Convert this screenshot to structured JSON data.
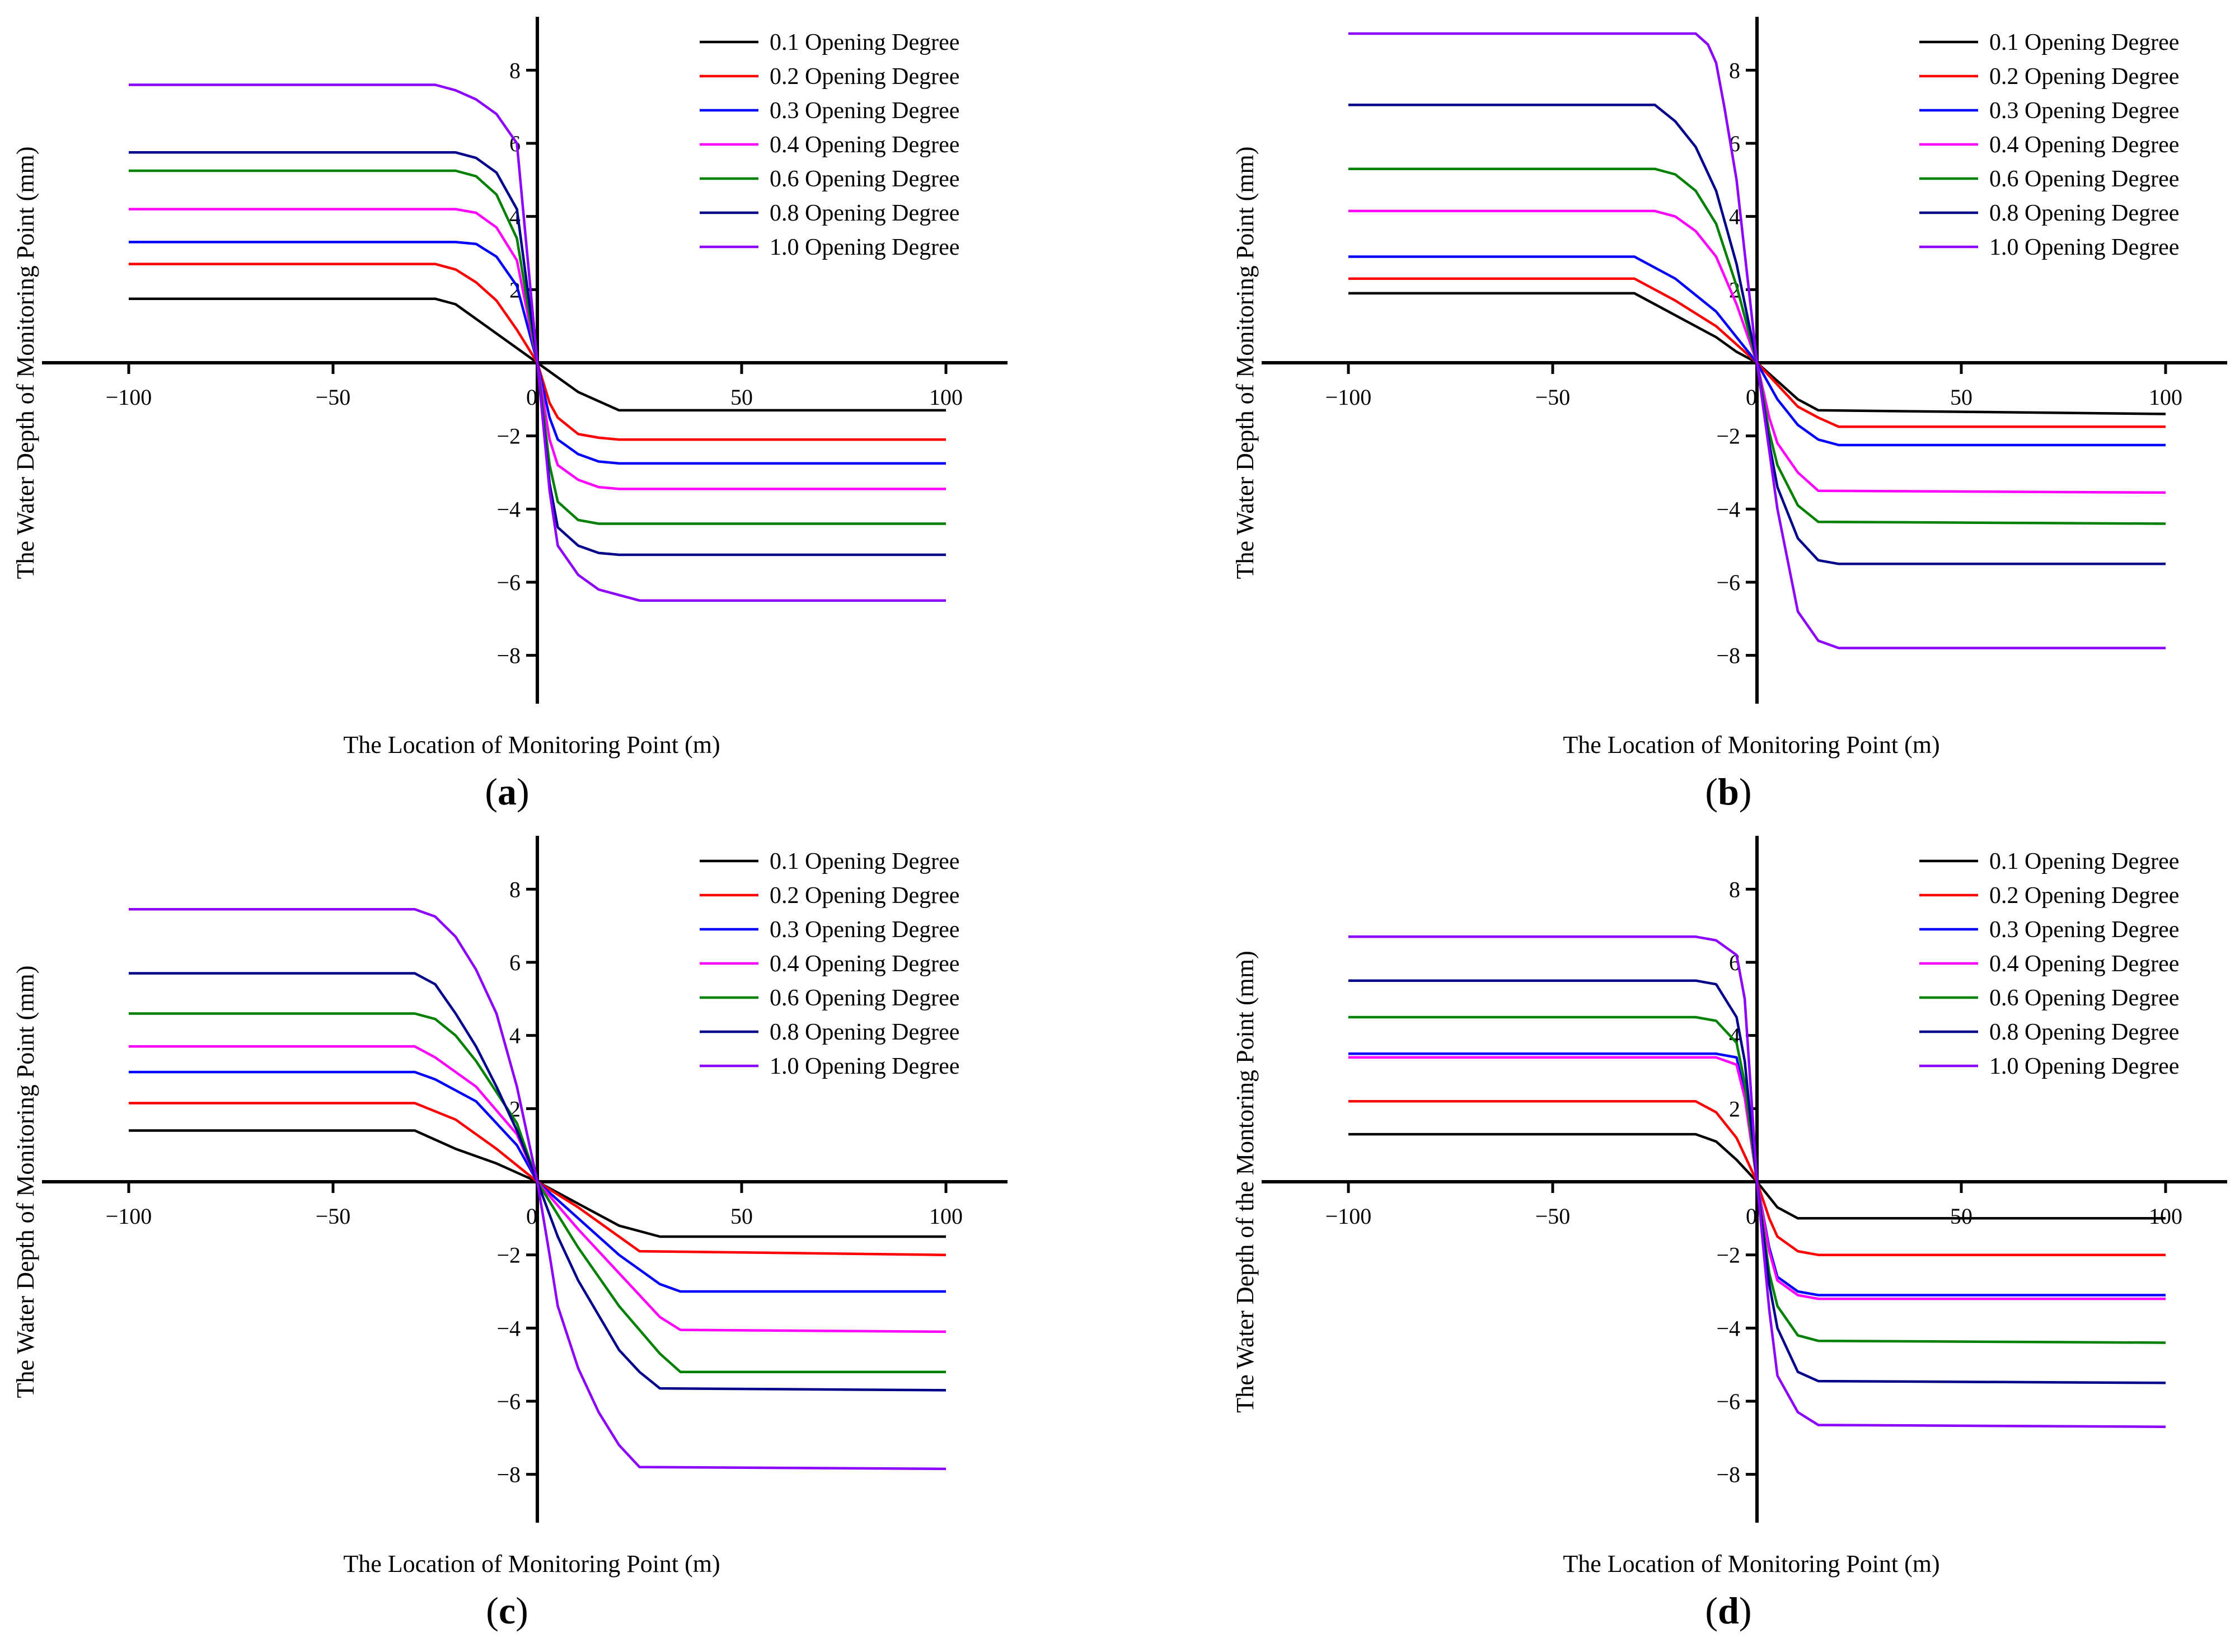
{
  "figure": {
    "colors": [
      "#000000",
      "#ff0000",
      "#0000ff",
      "#ff00ff",
      "#008000",
      "#00008b",
      "#8b00ff"
    ]
  },
  "chart_data": [
    {
      "panel": "a",
      "caption_letter": "a",
      "type": "line",
      "xlabel": "The Location of Monitoring Point (m)",
      "ylabel": "The Water Depth of Monitoring Point (mm)",
      "xlim": [
        -100,
        100
      ],
      "ylim": [
        -9,
        9
      ],
      "xticks": [
        -100,
        -50,
        50,
        100
      ],
      "xtick_labels": [
        "−100",
        "−50",
        "50",
        "100"
      ],
      "yticks": [
        -8,
        -6,
        -4,
        -2,
        2,
        4,
        6,
        8
      ],
      "ytick_labels": [
        "−8",
        "−6",
        "−4",
        "−2",
        "2",
        "4",
        "6",
        "8"
      ],
      "origin_label": "0",
      "legend_position": "top-right",
      "series": [
        {
          "name": "0.1 Opening Degree",
          "x": [
            -100,
            -25,
            -20,
            0,
            10,
            20,
            100
          ],
          "y": [
            1.75,
            1.75,
            1.6,
            0,
            -0.8,
            -1.3,
            -1.3
          ]
        },
        {
          "name": "0.2 Opening Degree",
          "x": [
            -100,
            -25,
            -20,
            -15,
            -10,
            -5,
            0,
            3,
            5,
            10,
            15,
            20,
            100
          ],
          "y": [
            2.7,
            2.7,
            2.55,
            2.2,
            1.7,
            0.9,
            0,
            -1.1,
            -1.5,
            -1.95,
            -2.05,
            -2.1,
            -2.1
          ]
        },
        {
          "name": "0.3 Opening Degree",
          "x": [
            -100,
            -20,
            -15,
            -10,
            -5,
            0,
            3,
            5,
            10,
            15,
            20,
            100
          ],
          "y": [
            3.3,
            3.3,
            3.25,
            2.9,
            2.1,
            0,
            -1.5,
            -2.1,
            -2.5,
            -2.7,
            -2.75,
            -2.75
          ]
        },
        {
          "name": "0.4 Opening Degree",
          "x": [
            -100,
            -20,
            -15,
            -10,
            -5,
            0,
            3,
            5,
            10,
            15,
            20,
            100
          ],
          "y": [
            4.2,
            4.2,
            4.1,
            3.7,
            2.8,
            0,
            -2.1,
            -2.8,
            -3.2,
            -3.4,
            -3.45,
            -3.45
          ]
        },
        {
          "name": "0.6 Opening Degree",
          "x": [
            -100,
            -20,
            -15,
            -10,
            -5,
            0,
            3,
            5,
            10,
            15,
            20,
            100
          ],
          "y": [
            5.25,
            5.25,
            5.1,
            4.6,
            3.4,
            0,
            -2.8,
            -3.8,
            -4.3,
            -4.4,
            -4.4,
            -4.4
          ]
        },
        {
          "name": "0.8 Opening Degree",
          "x": [
            -100,
            -20,
            -15,
            -10,
            -5,
            0,
            3,
            5,
            10,
            15,
            20,
            100
          ],
          "y": [
            5.75,
            5.75,
            5.6,
            5.2,
            4.2,
            0,
            -3.3,
            -4.5,
            -5.0,
            -5.2,
            -5.25,
            -5.25
          ]
        },
        {
          "name": "1.0 Opening Degree",
          "x": [
            -100,
            -25,
            -20,
            -15,
            -10,
            -5,
            0,
            3,
            5,
            10,
            15,
            20,
            25,
            100
          ],
          "y": [
            7.6,
            7.6,
            7.45,
            7.2,
            6.8,
            6.0,
            0,
            -3.5,
            -5.0,
            -5.8,
            -6.2,
            -6.35,
            -6.5,
            -6.5
          ]
        }
      ]
    },
    {
      "panel": "b",
      "caption_letter": "b",
      "type": "line",
      "xlabel": "The Location of Monitoring Point (m)",
      "ylabel": "The Water Depth of Monitoring Point (mm)",
      "xlim": [
        -100,
        100
      ],
      "ylim": [
        -9,
        9
      ],
      "xticks": [
        -100,
        -50,
        50,
        100
      ],
      "xtick_labels": [
        "−100",
        "−50",
        "50",
        "100"
      ],
      "yticks": [
        -8,
        -6,
        -4,
        -2,
        2,
        4,
        6,
        8
      ],
      "ytick_labels": [
        "−8",
        "−6",
        "−4",
        "−2",
        "2",
        "4",
        "6",
        "8"
      ],
      "origin_label": "0",
      "legend_position": "top-right",
      "series": [
        {
          "name": "0.1 Opening Degree",
          "x": [
            -100,
            -30,
            -20,
            -10,
            -5,
            0,
            10,
            15,
            100
          ],
          "y": [
            1.9,
            1.9,
            1.3,
            0.7,
            0.3,
            0,
            -1.0,
            -1.3,
            -1.4
          ]
        },
        {
          "name": "0.2 Opening Degree",
          "x": [
            -100,
            -30,
            -20,
            -10,
            -5,
            0,
            5,
            10,
            15,
            20,
            100
          ],
          "y": [
            2.3,
            2.3,
            1.7,
            1.0,
            0.5,
            0,
            -0.6,
            -1.2,
            -1.5,
            -1.75,
            -1.75
          ]
        },
        {
          "name": "0.3 Opening Degree",
          "x": [
            -100,
            -30,
            -20,
            -10,
            -5,
            0,
            5,
            10,
            15,
            20,
            100
          ],
          "y": [
            2.9,
            2.9,
            2.3,
            1.4,
            0.7,
            0,
            -1.0,
            -1.7,
            -2.1,
            -2.25,
            -2.25
          ]
        },
        {
          "name": "0.4 Opening Degree",
          "x": [
            -100,
            -25,
            -20,
            -15,
            -10,
            -5,
            0,
            3,
            5,
            10,
            15,
            100
          ],
          "y": [
            4.15,
            4.15,
            4.0,
            3.6,
            2.9,
            1.6,
            0,
            -1.5,
            -2.2,
            -3.0,
            -3.5,
            -3.55
          ]
        },
        {
          "name": "0.6 Opening Degree",
          "x": [
            -100,
            -25,
            -20,
            -15,
            -10,
            -5,
            0,
            3,
            5,
            10,
            15,
            100
          ],
          "y": [
            5.3,
            5.3,
            5.15,
            4.7,
            3.8,
            2.1,
            0,
            -1.9,
            -2.8,
            -3.9,
            -4.35,
            -4.4
          ]
        },
        {
          "name": "0.8 Opening Degree",
          "x": [
            -100,
            -25,
            -20,
            -15,
            -10,
            -5,
            0,
            3,
            5,
            10,
            15,
            20,
            100
          ],
          "y": [
            7.05,
            7.05,
            6.6,
            5.9,
            4.7,
            2.7,
            0,
            -2.2,
            -3.4,
            -4.8,
            -5.4,
            -5.5,
            -5.5
          ]
        },
        {
          "name": "1.0 Opening Degree",
          "x": [
            -100,
            -15,
            -12,
            -10,
            -8,
            -5,
            -3,
            0,
            3,
            5,
            10,
            15,
            20,
            100
          ],
          "y": [
            9.0,
            9.0,
            8.7,
            8.2,
            7.0,
            5.0,
            3.0,
            0,
            -2.4,
            -4.0,
            -6.8,
            -7.6,
            -7.8,
            -7.8
          ]
        }
      ]
    },
    {
      "panel": "c",
      "caption_letter": "c",
      "type": "line",
      "xlabel": "The Location of Monitoring Point (m)",
      "ylabel": "The Water Depth of Monitoring Point (mm)",
      "xlim": [
        -100,
        100
      ],
      "ylim": [
        -9,
        9
      ],
      "xticks": [
        -100,
        -50,
        50,
        100
      ],
      "xtick_labels": [
        "−100",
        "−50",
        "50",
        "100"
      ],
      "yticks": [
        -8,
        -6,
        -4,
        -2,
        2,
        4,
        6,
        8
      ],
      "ytick_labels": [
        "−8",
        "−6",
        "−4",
        "−2",
        "2",
        "4",
        "6",
        "8"
      ],
      "origin_label": "0",
      "legend_position": "top-right",
      "series": [
        {
          "name": "0.1 Opening Degree",
          "x": [
            -100,
            -30,
            -20,
            -10,
            0,
            10,
            20,
            30,
            100
          ],
          "y": [
            1.4,
            1.4,
            0.9,
            0.5,
            0,
            -0.6,
            -1.2,
            -1.5,
            -1.5
          ]
        },
        {
          "name": "0.2 Opening Degree",
          "x": [
            -100,
            -30,
            -20,
            -10,
            0,
            10,
            20,
            25,
            100
          ],
          "y": [
            2.15,
            2.15,
            1.7,
            0.9,
            0,
            -0.7,
            -1.5,
            -1.9,
            -2.0
          ]
        },
        {
          "name": "0.3 Opening Degree",
          "x": [
            -100,
            -30,
            -25,
            -15,
            -5,
            0,
            10,
            20,
            30,
            35,
            100
          ],
          "y": [
            3.0,
            3.0,
            2.8,
            2.2,
            1.0,
            0,
            -1.0,
            -2.0,
            -2.8,
            -3.0,
            -3.0
          ]
        },
        {
          "name": "0.4 Opening Degree",
          "x": [
            -100,
            -30,
            -25,
            -15,
            -5,
            0,
            10,
            20,
            30,
            35,
            100
          ],
          "y": [
            3.7,
            3.7,
            3.4,
            2.6,
            1.3,
            0,
            -1.3,
            -2.5,
            -3.7,
            -4.05,
            -4.1
          ]
        },
        {
          "name": "0.6 Opening Degree",
          "x": [
            -100,
            -30,
            -25,
            -20,
            -15,
            -5,
            0,
            10,
            20,
            30,
            35,
            100
          ],
          "y": [
            4.6,
            4.6,
            4.45,
            4.0,
            3.3,
            1.6,
            0,
            -1.8,
            -3.4,
            -4.7,
            -5.2,
            -5.2
          ]
        },
        {
          "name": "0.8 Opening Degree",
          "x": [
            -100,
            -30,
            -25,
            -20,
            -15,
            -10,
            -5,
            0,
            5,
            10,
            20,
            25,
            30,
            100
          ],
          "y": [
            5.7,
            5.7,
            5.4,
            4.6,
            3.7,
            2.6,
            1.4,
            0,
            -1.5,
            -2.7,
            -4.6,
            -5.2,
            -5.65,
            -5.7
          ]
        },
        {
          "name": "1.0 Opening Degree",
          "x": [
            -100,
            -30,
            -25,
            -20,
            -15,
            -10,
            -5,
            0,
            3,
            5,
            10,
            15,
            20,
            25,
            100
          ],
          "y": [
            7.45,
            7.45,
            7.25,
            6.7,
            5.8,
            4.6,
            2.6,
            0,
            -2.0,
            -3.4,
            -5.1,
            -6.3,
            -7.2,
            -7.8,
            -7.85
          ]
        }
      ]
    },
    {
      "panel": "d",
      "caption_letter": "d",
      "type": "line",
      "xlabel": "The Location of Monitoring Point (m)",
      "ylabel": "The Water Depth of the Montoring Point (mm)",
      "xlim": [
        -100,
        100
      ],
      "ylim": [
        -9,
        9
      ],
      "xticks": [
        -100,
        -50,
        50,
        100
      ],
      "xtick_labels": [
        "−100",
        "−50",
        "50",
        "100"
      ],
      "yticks": [
        -8,
        -6,
        -4,
        -2,
        2,
        4,
        6,
        8
      ],
      "ytick_labels": [
        "−8",
        "−6",
        "−4",
        "−2",
        "2",
        "4",
        "6",
        "8"
      ],
      "origin_label": "0",
      "legend_position": "top-right",
      "series": [
        {
          "name": "0.1 Opening Degree",
          "x": [
            -100,
            -15,
            -10,
            -5,
            0,
            5,
            10,
            100
          ],
          "y": [
            1.3,
            1.3,
            1.1,
            0.6,
            0,
            -0.7,
            -1.0,
            -1.0
          ]
        },
        {
          "name": "0.2 Opening Degree",
          "x": [
            -100,
            -15,
            -10,
            -5,
            0,
            3,
            5,
            10,
            15,
            100
          ],
          "y": [
            2.2,
            2.2,
            1.9,
            1.2,
            0,
            -1.0,
            -1.5,
            -1.9,
            -2.0,
            -2.0
          ]
        },
        {
          "name": "0.3 Opening Degree",
          "x": [
            -100,
            -10,
            -5,
            -3,
            0,
            3,
            5,
            10,
            15,
            100
          ],
          "y": [
            3.5,
            3.5,
            3.4,
            2.4,
            0,
            -1.8,
            -2.6,
            -3.0,
            -3.1,
            -3.1
          ]
        },
        {
          "name": "0.4 Opening Degree",
          "x": [
            -100,
            -10,
            -5,
            -3,
            0,
            3,
            5,
            10,
            15,
            100
          ],
          "y": [
            3.4,
            3.4,
            3.2,
            2.3,
            0,
            -1.9,
            -2.7,
            -3.1,
            -3.2,
            -3.2
          ]
        },
        {
          "name": "0.6 Opening Degree",
          "x": [
            -100,
            -15,
            -10,
            -5,
            -3,
            0,
            3,
            5,
            10,
            15,
            100
          ],
          "y": [
            4.5,
            4.5,
            4.4,
            3.8,
            2.7,
            0,
            -2.5,
            -3.4,
            -4.2,
            -4.35,
            -4.4
          ]
        },
        {
          "name": "0.8 Opening Degree",
          "x": [
            -100,
            -15,
            -10,
            -5,
            -3,
            0,
            3,
            5,
            10,
            15,
            100
          ],
          "y": [
            5.5,
            5.5,
            5.4,
            4.5,
            3.3,
            0,
            -2.8,
            -4.0,
            -5.2,
            -5.45,
            -5.5
          ]
        },
        {
          "name": "1.0 Opening Degree",
          "x": [
            -100,
            -15,
            -10,
            -5,
            -3,
            0,
            3,
            5,
            10,
            15,
            100
          ],
          "y": [
            6.7,
            6.7,
            6.6,
            6.2,
            5.0,
            0,
            -3.5,
            -5.3,
            -6.3,
            -6.65,
            -6.7
          ]
        }
      ]
    }
  ]
}
